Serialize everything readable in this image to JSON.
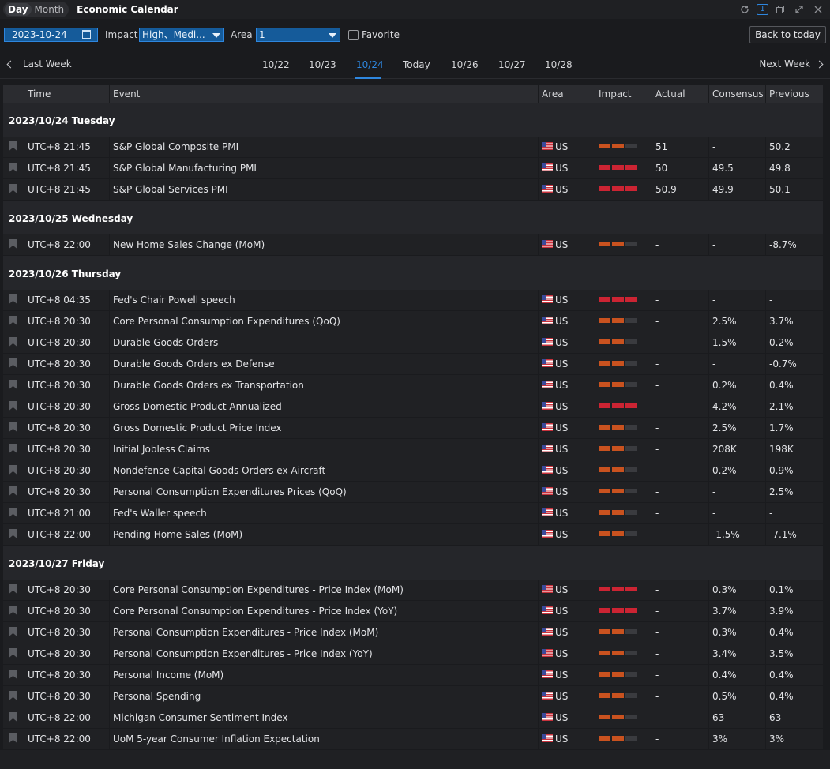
{
  "titlebar": {
    "day_label": "Day",
    "month_label": "Month",
    "title": "Economic Calendar",
    "window_number": "1",
    "icons": [
      "refresh-icon",
      "window-number-icon",
      "restore-window-icon",
      "expand-icon",
      "close-icon"
    ]
  },
  "filters": {
    "date_value": "2023-10-24",
    "impact_label": "Impact",
    "impact_value": "High、Medi...",
    "area_label": "Area",
    "area_value": "1",
    "favorite_label": "Favorite",
    "back_label": "Back to today"
  },
  "weeknav": {
    "prev_label": "Last Week",
    "next_label": "Next Week",
    "days": [
      "10/22",
      "10/23",
      "10/24",
      "Today",
      "10/26",
      "10/27",
      "10/28"
    ],
    "active_index": 2
  },
  "colors": {
    "accent": "#2e86de",
    "impact_medium": "#c9521f",
    "impact_high": "#cc2433"
  },
  "table": {
    "headers": [
      "Time",
      "Event",
      "Area",
      "Impact",
      "Actual",
      "Consensus",
      "Previous"
    ],
    "sections": [
      {
        "date": "2023/10/24 Tuesday",
        "rows": [
          {
            "time": "UTC+8 21:45",
            "event": "S&P Global Composite PMI",
            "area": "US",
            "impact": 2,
            "actual": "51",
            "consensus": "-",
            "previous": "50.2"
          },
          {
            "time": "UTC+8 21:45",
            "event": "S&P Global Manufacturing PMI",
            "area": "US",
            "impact": 3,
            "actual": "50",
            "consensus": "49.5",
            "previous": "49.8"
          },
          {
            "time": "UTC+8 21:45",
            "event": "S&P Global Services PMI",
            "area": "US",
            "impact": 3,
            "actual": "50.9",
            "consensus": "49.9",
            "previous": "50.1"
          }
        ]
      },
      {
        "date": "2023/10/25 Wednesday",
        "rows": [
          {
            "time": "UTC+8 22:00",
            "event": "New Home Sales Change (MoM)",
            "area": "US",
            "impact": 2,
            "actual": "-",
            "consensus": "-",
            "previous": "-8.7%"
          }
        ]
      },
      {
        "date": "2023/10/26 Thursday",
        "rows": [
          {
            "time": "UTC+8 04:35",
            "event": "Fed's Chair Powell speech",
            "area": "US",
            "impact": 3,
            "actual": "-",
            "consensus": "-",
            "previous": "-"
          },
          {
            "time": "UTC+8 20:30",
            "event": "Core Personal Consumption Expenditures (QoQ)",
            "area": "US",
            "impact": 2,
            "actual": "-",
            "consensus": "2.5%",
            "previous": "3.7%"
          },
          {
            "time": "UTC+8 20:30",
            "event": "Durable Goods Orders",
            "area": "US",
            "impact": 2,
            "actual": "-",
            "consensus": "1.5%",
            "previous": "0.2%"
          },
          {
            "time": "UTC+8 20:30",
            "event": "Durable Goods Orders ex Defense",
            "area": "US",
            "impact": 2,
            "actual": "-",
            "consensus": "-",
            "previous": "-0.7%"
          },
          {
            "time": "UTC+8 20:30",
            "event": "Durable Goods Orders ex Transportation",
            "area": "US",
            "impact": 2,
            "actual": "-",
            "consensus": "0.2%",
            "previous": "0.4%"
          },
          {
            "time": "UTC+8 20:30",
            "event": "Gross Domestic Product Annualized",
            "area": "US",
            "impact": 3,
            "actual": "-",
            "consensus": "4.2%",
            "previous": "2.1%"
          },
          {
            "time": "UTC+8 20:30",
            "event": "Gross Domestic Product Price Index",
            "area": "US",
            "impact": 2,
            "actual": "-",
            "consensus": "2.5%",
            "previous": "1.7%"
          },
          {
            "time": "UTC+8 20:30",
            "event": "Initial Jobless Claims",
            "area": "US",
            "impact": 2,
            "actual": "-",
            "consensus": "208K",
            "previous": "198K"
          },
          {
            "time": "UTC+8 20:30",
            "event": "Nondefense Capital Goods Orders ex Aircraft",
            "area": "US",
            "impact": 2,
            "actual": "-",
            "consensus": "0.2%",
            "previous": "0.9%"
          },
          {
            "time": "UTC+8 20:30",
            "event": "Personal Consumption Expenditures Prices (QoQ)",
            "area": "US",
            "impact": 2,
            "actual": "-",
            "consensus": "-",
            "previous": "2.5%"
          },
          {
            "time": "UTC+8 21:00",
            "event": "Fed's Waller speech",
            "area": "US",
            "impact": 2,
            "actual": "-",
            "consensus": "-",
            "previous": "-"
          },
          {
            "time": "UTC+8 22:00",
            "event": "Pending Home Sales (MoM)",
            "area": "US",
            "impact": 2,
            "actual": "-",
            "consensus": "-1.5%",
            "previous": "-7.1%"
          }
        ]
      },
      {
        "date": "2023/10/27 Friday",
        "rows": [
          {
            "time": "UTC+8 20:30",
            "event": "Core Personal Consumption Expenditures - Price Index (MoM)",
            "area": "US",
            "impact": 3,
            "actual": "-",
            "consensus": "0.3%",
            "previous": "0.1%"
          },
          {
            "time": "UTC+8 20:30",
            "event": "Core Personal Consumption Expenditures - Price Index (YoY)",
            "area": "US",
            "impact": 3,
            "actual": "-",
            "consensus": "3.7%",
            "previous": "3.9%"
          },
          {
            "time": "UTC+8 20:30",
            "event": "Personal Consumption Expenditures - Price Index (MoM)",
            "area": "US",
            "impact": 2,
            "actual": "-",
            "consensus": "0.3%",
            "previous": "0.4%"
          },
          {
            "time": "UTC+8 20:30",
            "event": "Personal Consumption Expenditures - Price Index (YoY)",
            "area": "US",
            "impact": 2,
            "actual": "-",
            "consensus": "3.4%",
            "previous": "3.5%"
          },
          {
            "time": "UTC+8 20:30",
            "event": "Personal Income (MoM)",
            "area": "US",
            "impact": 2,
            "actual": "-",
            "consensus": "0.4%",
            "previous": "0.4%"
          },
          {
            "time": "UTC+8 20:30",
            "event": "Personal Spending",
            "area": "US",
            "impact": 2,
            "actual": "-",
            "consensus": "0.5%",
            "previous": "0.4%"
          },
          {
            "time": "UTC+8 22:00",
            "event": "Michigan Consumer Sentiment Index",
            "area": "US",
            "impact": 2,
            "actual": "-",
            "consensus": "63",
            "previous": "63"
          },
          {
            "time": "UTC+8 22:00",
            "event": "UoM 5-year Consumer Inflation Expectation",
            "area": "US",
            "impact": 2,
            "actual": "-",
            "consensus": "3%",
            "previous": "3%"
          }
        ]
      }
    ]
  }
}
